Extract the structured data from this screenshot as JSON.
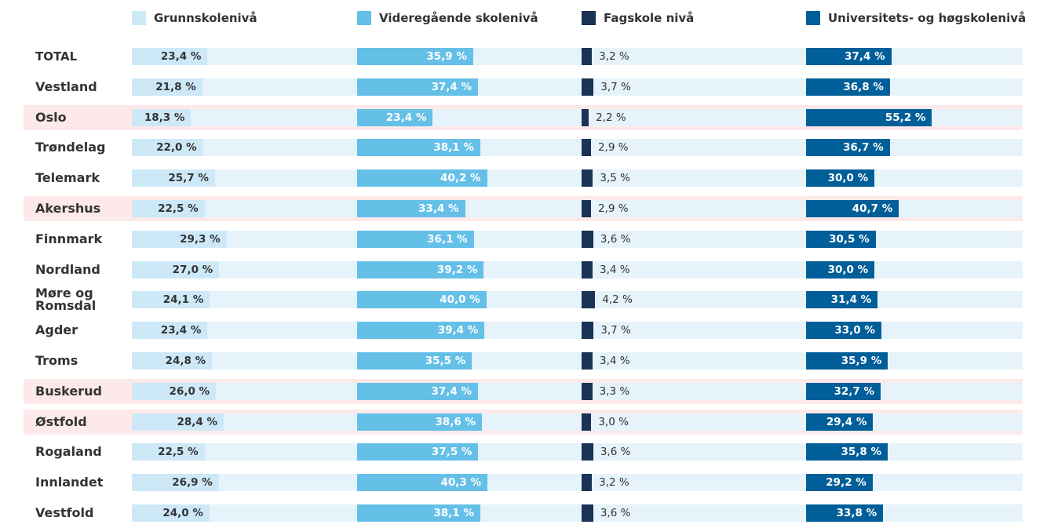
{
  "chart_data": {
    "type": "bar",
    "orientation": "horizontal",
    "categories": [
      "TOTAL",
      "Vestland",
      "Oslo",
      "Trøndelag",
      "Telemark",
      "Akershus",
      "Finnmark",
      "Nordland",
      "Møre og Romsdal",
      "Agder",
      "Troms",
      "Buskerud",
      "Østfold",
      "Rogaland",
      "Innlandet",
      "Vestfold"
    ],
    "highlighted": [
      "Oslo",
      "Akershus",
      "Buskerud",
      "Østfold"
    ],
    "highlight_color": "#fde9ea",
    "track_color": "#e6f3fb",
    "series": [
      {
        "name": "Grunnskolenivå",
        "color": "#cde9f8",
        "label_color": "#333333",
        "label_position": "inside",
        "xlim": [
          0,
          67
        ],
        "values": [
          23.4,
          21.8,
          18.3,
          22.0,
          25.7,
          22.5,
          29.3,
          27.0,
          24.1,
          23.4,
          24.8,
          26.0,
          28.4,
          22.5,
          26.9,
          24.0
        ],
        "value_labels": [
          "23,4 %",
          "21,8 %",
          "18,3 %",
          "22,0 %",
          "25,7 %",
          "22,5 %",
          "29,3 %",
          "27,0 %",
          "24,1 %",
          "23,4 %",
          "24,8 %",
          "26,0 %",
          "28,4 %",
          "22,5 %",
          "26,9 %",
          "24,0 %"
        ]
      },
      {
        "name": "Videregående skolenivå",
        "color": "#65c0e8",
        "label_color": "#ffffff",
        "label_position": "inside",
        "xlim": [
          0,
          67
        ],
        "values": [
          35.9,
          37.4,
          23.4,
          38.1,
          40.2,
          33.4,
          36.1,
          39.2,
          40.0,
          39.4,
          35.5,
          37.4,
          38.6,
          37.5,
          40.3,
          38.1
        ],
        "value_labels": [
          "35,9 %",
          "37,4 %",
          "23,4 %",
          "38,1 %",
          "40,2 %",
          "33,4 %",
          "36,1 %",
          "39,2 %",
          "40,0 %",
          "39,4 %",
          "35,5 %",
          "37,4 %",
          "38,6 %",
          "37,5 %",
          "40,3 %",
          "38,1 %"
        ]
      },
      {
        "name": "Fagskole nivå",
        "color": "#1a3356",
        "label_color": "#333333",
        "label_position": "outside",
        "xlim": [
          0,
          67
        ],
        "values": [
          3.2,
          3.7,
          2.2,
          2.9,
          3.5,
          2.9,
          3.6,
          3.4,
          4.2,
          3.7,
          3.4,
          3.3,
          3.0,
          3.6,
          3.2,
          3.6
        ],
        "value_labels": [
          "3,2 %",
          "3,7 %",
          "2,2 %",
          "2,9 %",
          "3,5 %",
          "2,9 %",
          "3,6 %",
          "3,4 %",
          "4,2 %",
          "3,7 %",
          "3,4 %",
          "3,3 %",
          "3,0 %",
          "3,6 %",
          "3,2 %",
          "3,6 %"
        ]
      },
      {
        "name": "Universitets- og høgskolenivå",
        "color": "#005e99",
        "label_color": "#ffffff",
        "label_position": "inside",
        "xlim": [
          0,
          95
        ],
        "values": [
          37.4,
          36.8,
          55.2,
          36.7,
          30.0,
          40.7,
          30.5,
          30.0,
          31.4,
          33.0,
          35.9,
          32.7,
          29.4,
          35.8,
          29.2,
          33.8
        ],
        "value_labels": [
          "37,4 %",
          "36,8 %",
          "55,2 %",
          "36,7 %",
          "30,0 %",
          "40,7 %",
          "30,5 %",
          "30,0 %",
          "31,4 %",
          "33,0 %",
          "35,9 %",
          "32,7 %",
          "29,4 %",
          "35,8 %",
          "29,2 %",
          "33,8 %"
        ]
      }
    ]
  }
}
